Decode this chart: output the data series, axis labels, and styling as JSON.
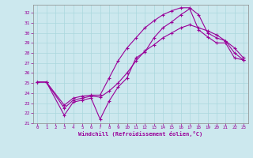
{
  "xlabel": "Windchill (Refroidissement éolien,°C)",
  "bg_color": "#cce8ee",
  "line_color": "#990099",
  "grid_color": "#aad8dd",
  "xlim": [
    -0.5,
    23.5
  ],
  "ylim": [
    21.0,
    32.8
  ],
  "yticks": [
    21,
    22,
    23,
    24,
    25,
    26,
    27,
    28,
    29,
    30,
    31,
    32
  ],
  "xticks": [
    0,
    1,
    2,
    3,
    4,
    5,
    6,
    7,
    8,
    9,
    10,
    11,
    12,
    13,
    14,
    15,
    16,
    17,
    18,
    19,
    20,
    21,
    22,
    23
  ],
  "line1_x": [
    0,
    1,
    3,
    4,
    5,
    6,
    7,
    8,
    9,
    10,
    11,
    12,
    13,
    14,
    15,
    16,
    17,
    18,
    19,
    20,
    21,
    22,
    23
  ],
  "line1_y": [
    25.1,
    25.1,
    21.8,
    23.1,
    23.3,
    23.5,
    21.4,
    23.2,
    24.6,
    25.5,
    27.5,
    28.1,
    29.5,
    30.5,
    31.1,
    31.8,
    32.4,
    30.3,
    29.6,
    29.0,
    29.0,
    27.5,
    27.3
  ],
  "line2_x": [
    0,
    1,
    3,
    4,
    5,
    6,
    7,
    8,
    9,
    10,
    11,
    12,
    13,
    14,
    15,
    16,
    17,
    18,
    19,
    20,
    21,
    22,
    23
  ],
  "line2_y": [
    25.1,
    25.1,
    22.5,
    23.3,
    23.5,
    23.7,
    23.6,
    24.2,
    25.0,
    26.0,
    27.2,
    28.2,
    28.8,
    29.5,
    30.0,
    30.5,
    30.8,
    30.5,
    30.2,
    29.8,
    29.2,
    28.0,
    27.3
  ],
  "line3_x": [
    0,
    1,
    3,
    4,
    5,
    6,
    7,
    8,
    9,
    10,
    11,
    12,
    13,
    14,
    15,
    16,
    17,
    18,
    19,
    20,
    21,
    22,
    23
  ],
  "line3_y": [
    25.1,
    25.1,
    22.8,
    23.5,
    23.7,
    23.8,
    23.8,
    25.5,
    27.2,
    28.5,
    29.5,
    30.5,
    31.2,
    31.8,
    32.2,
    32.5,
    32.5,
    31.8,
    30.0,
    29.5,
    29.2,
    28.5,
    27.5
  ]
}
